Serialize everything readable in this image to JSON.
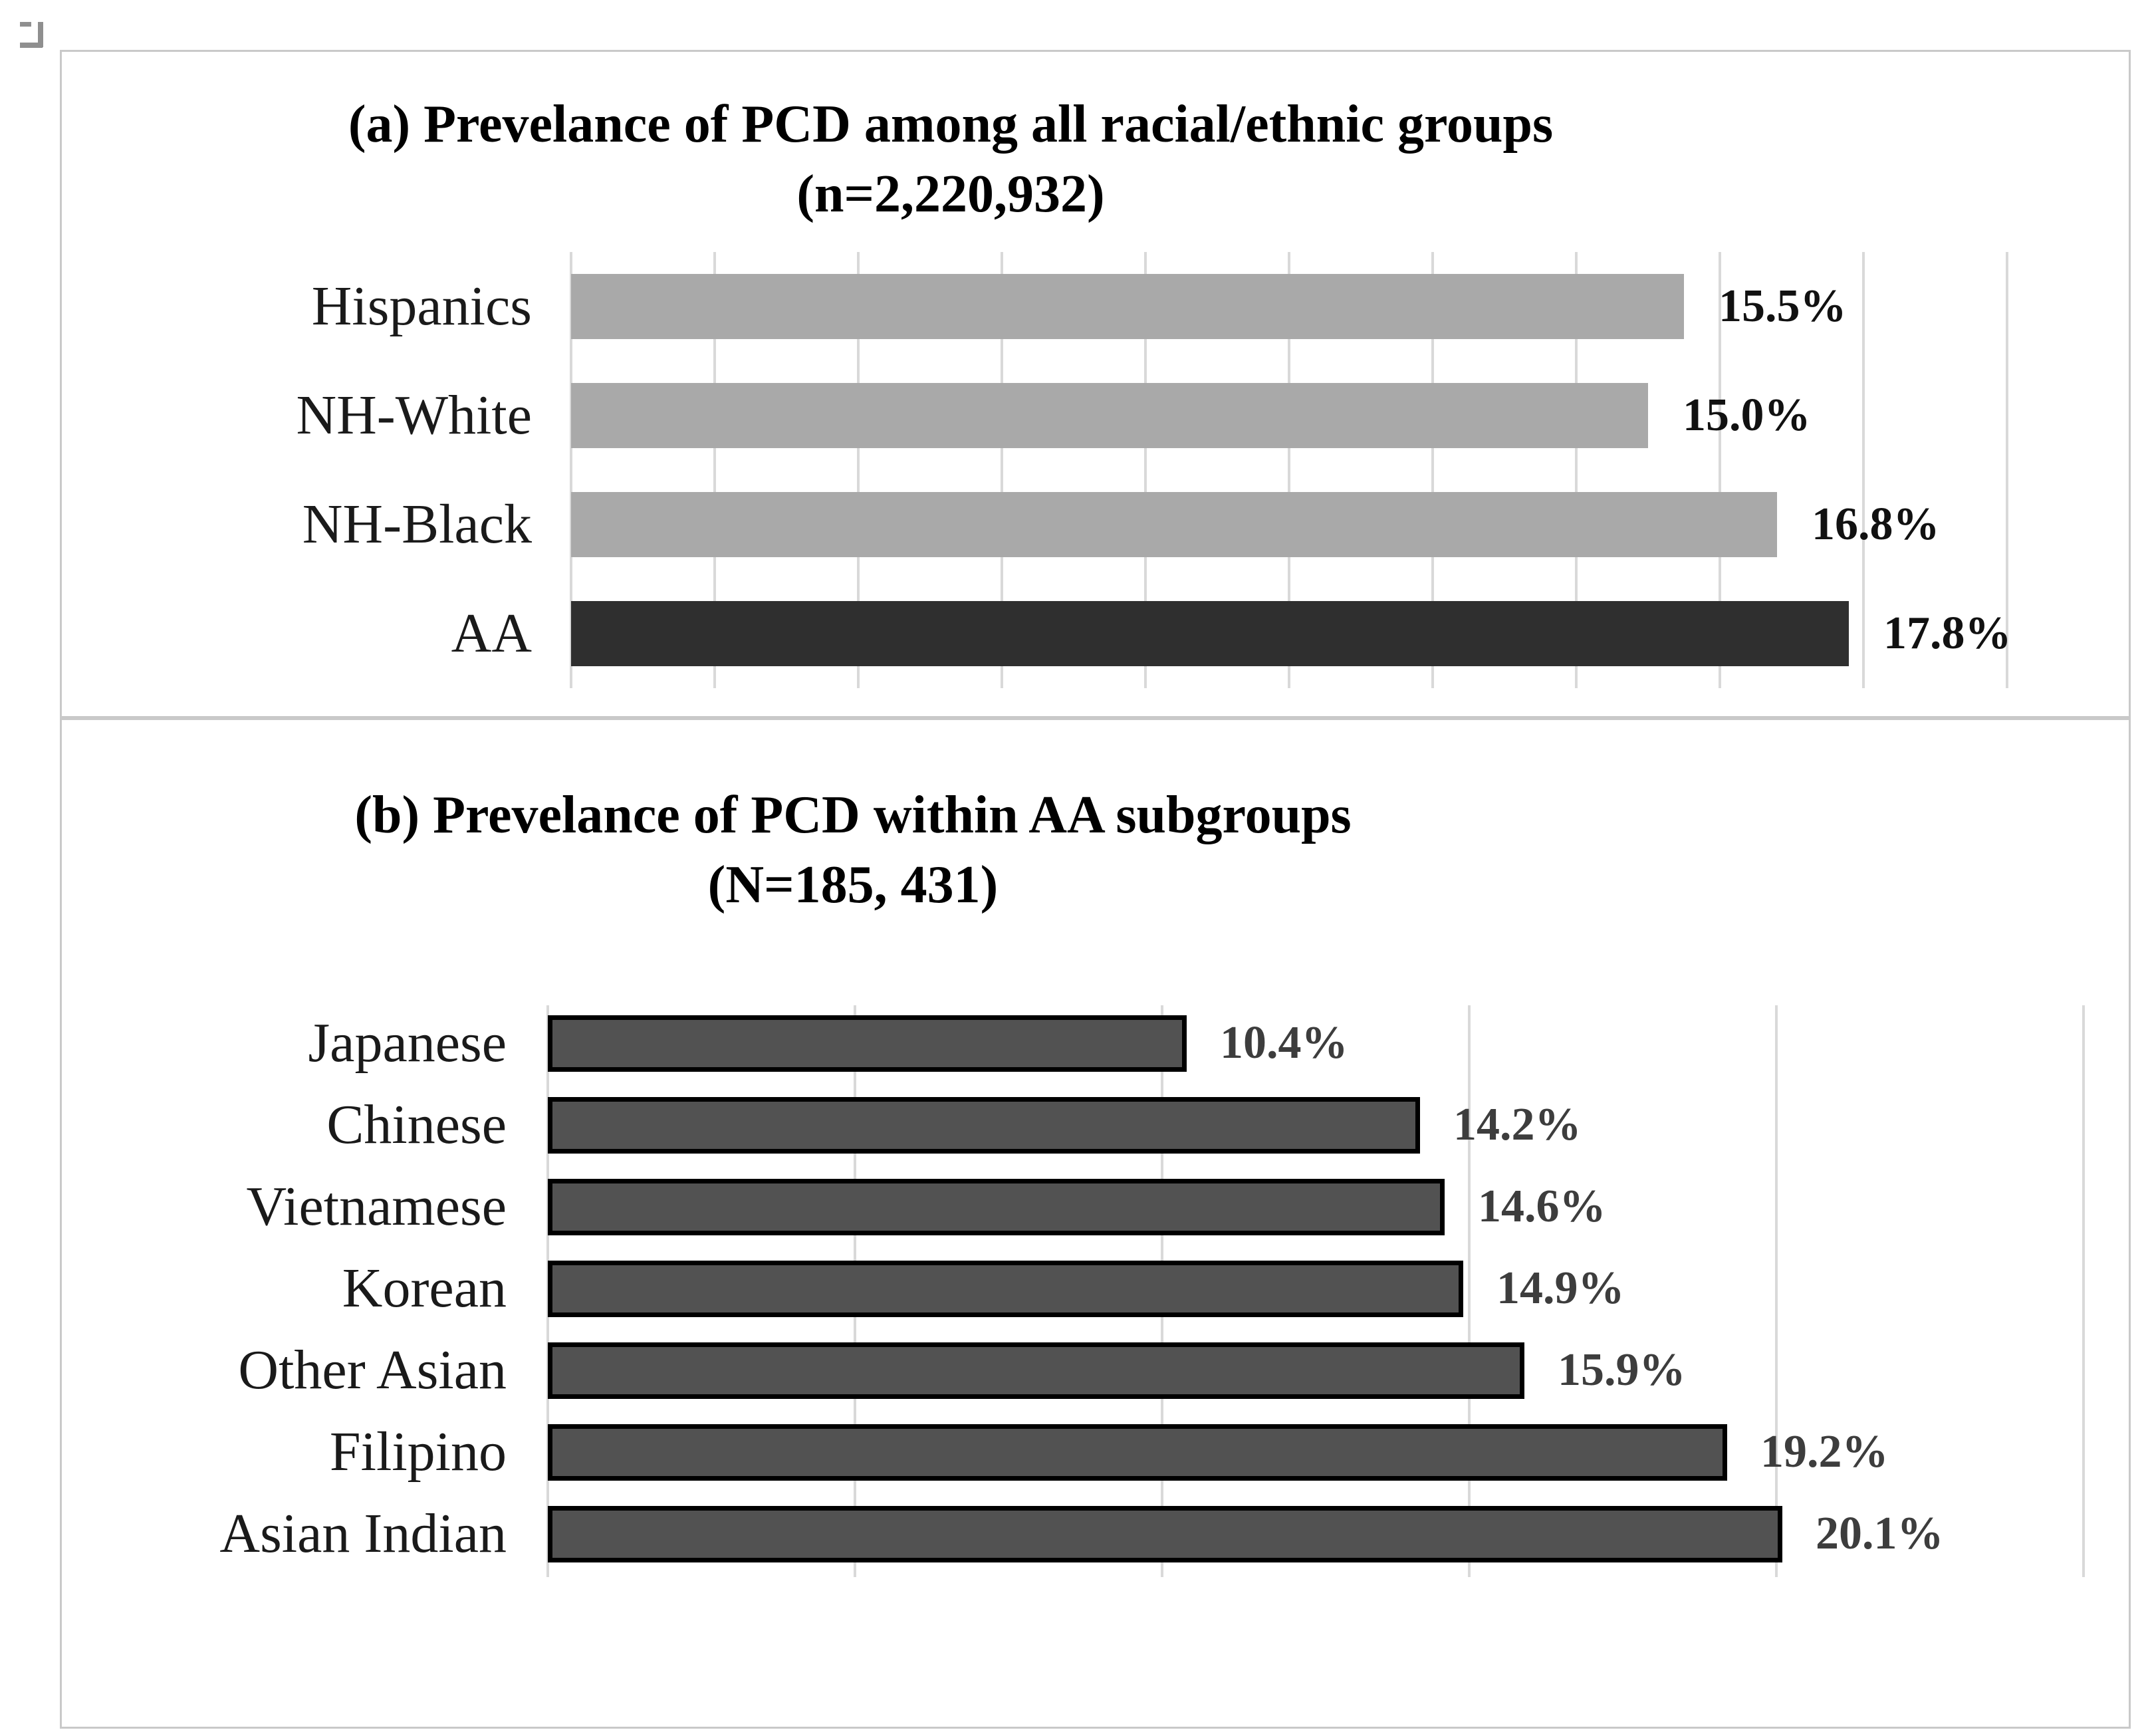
{
  "page": {
    "background": "#ffffff",
    "panel_border_color": "#c9c9c9",
    "gridline_color": "#d9d9d9"
  },
  "icons": {
    "object_anchor": "object-anchor-icon"
  },
  "chart_data": [
    {
      "id": "a",
      "type": "bar",
      "orientation": "horizontal",
      "title": "(a) Prevelance of PCD among all racial/ethnic groups",
      "subtitle": "(n=2,220,932)",
      "categories": [
        "Hispanics",
        "NH-White",
        "NH-Black",
        "AA"
      ],
      "values": [
        15.5,
        15.0,
        16.8,
        17.8
      ],
      "value_labels": [
        "15.5%",
        "15.0%",
        "16.8%",
        "17.8%"
      ],
      "emphasized_category": "AA",
      "xlim": [
        0,
        20
      ],
      "gridline_step": 2,
      "grid": true,
      "legend": false,
      "bar_color": "#a9a9a9",
      "emphasis_color": "#2f2f2f",
      "value_label_color": "#111111"
    },
    {
      "id": "b",
      "type": "bar",
      "orientation": "horizontal",
      "title": "(b) Prevelance of PCD within AA subgroups",
      "subtitle": "(N=185, 431)",
      "categories": [
        "Japanese",
        "Chinese",
        "Vietnamese",
        "Korean",
        "Other Asian",
        "Filipino",
        "Asian Indian"
      ],
      "values": [
        10.4,
        14.2,
        14.6,
        14.9,
        15.9,
        19.2,
        20.1
      ],
      "value_labels": [
        "10.4%",
        "14.2%",
        "14.6%",
        "14.9%",
        "15.9%",
        "19.2%",
        "20.1%"
      ],
      "emphasized_category": null,
      "xlim": [
        0,
        25
      ],
      "gridline_step": 5,
      "grid": true,
      "legend": false,
      "bar_color": "#525252",
      "bar_border_color": "#000000",
      "value_label_color": "#3d3d3d"
    }
  ]
}
